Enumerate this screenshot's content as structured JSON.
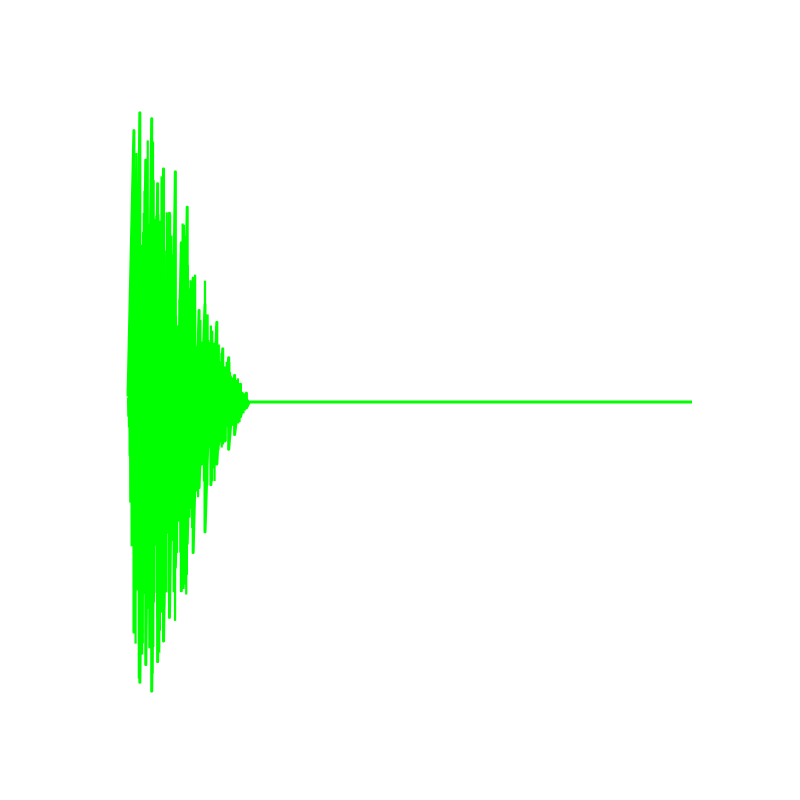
{
  "chart_data": {
    "type": "line",
    "axes_visible": false,
    "grid": false,
    "legend": "none",
    "line_color": "#00ff00",
    "background_color": "#ffffff",
    "x_range": [
      0,
      1
    ],
    "y_range": [
      -1,
      1
    ],
    "series": [
      {
        "x": [
          0.0,
          0.0105,
          0.0105,
          0.021,
          0.021,
          0.0315,
          0.0315,
          0.042,
          0.042,
          0.0525,
          0.0525,
          0.063,
          0.063,
          0.0735,
          0.0735,
          0.084,
          0.084,
          0.0945,
          0.0945,
          0.105,
          0.105,
          0.1155,
          0.1155,
          0.126,
          0.126,
          0.1365,
          0.1365,
          0.147,
          0.147,
          0.1575,
          0.1575,
          0.168,
          0.168,
          0.1785,
          0.1785,
          0.189,
          0.189,
          0.1995,
          0.1995,
          0.21,
          0.21,
          0.215,
          1.0
        ],
        "values": [
          0.02,
          0.92,
          -0.78,
          0.98,
          -0.95,
          0.82,
          -0.89,
          0.96,
          -0.98,
          0.74,
          -0.88,
          0.79,
          -0.81,
          0.64,
          -0.73,
          0.78,
          -0.56,
          0.54,
          -0.64,
          0.66,
          -0.48,
          0.42,
          -0.51,
          0.31,
          -0.29,
          0.33,
          -0.44,
          0.19,
          -0.28,
          0.27,
          -0.21,
          0.18,
          -0.14,
          0.15,
          -0.16,
          0.09,
          -0.11,
          0.06,
          -0.05,
          0.03,
          -0.02,
          0.0,
          0.0
        ]
      }
    ]
  }
}
